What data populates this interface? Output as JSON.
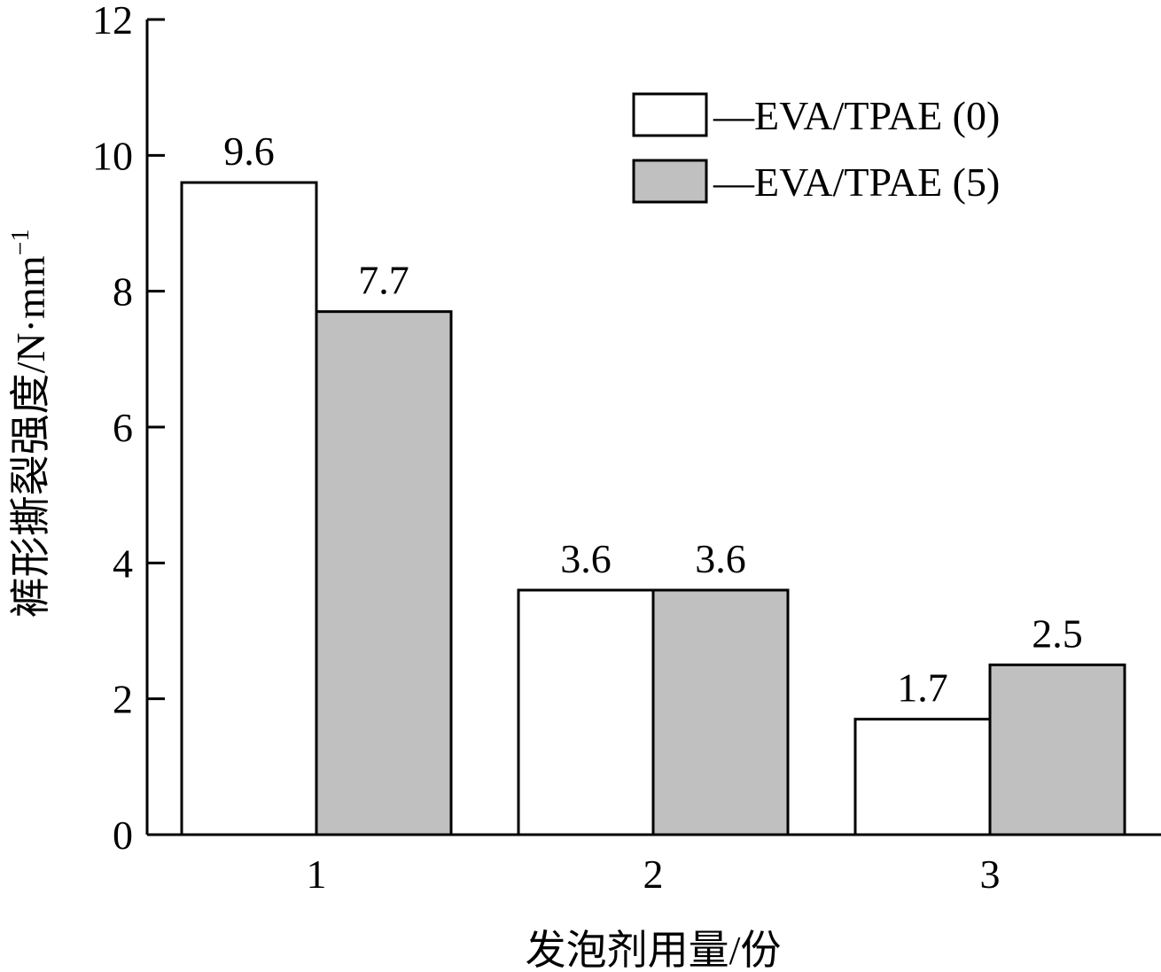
{
  "chart_data": {
    "type": "bar",
    "categories": [
      "1",
      "2",
      "3"
    ],
    "series": [
      {
        "name": "EVA/TPAE (0)",
        "values": [
          9.6,
          3.6,
          1.7
        ],
        "labels": [
          "9.6",
          "3.6",
          "1.7"
        ],
        "color": "#ffffff"
      },
      {
        "name": "EVA/TPAE (5)",
        "values": [
          7.7,
          3.6,
          2.5
        ],
        "labels": [
          "7.7",
          "3.6",
          "2.5"
        ],
        "color": "#c0c0c0"
      }
    ],
    "legend_prefix": "—",
    "title": "",
    "xlabel": "发泡剂用量/份",
    "ylabel": "裤形撕裂强度/N·mm",
    "ylabel_superscript": "−1",
    "ylim": [
      0,
      12
    ],
    "yticks": [
      "0",
      "2",
      "4",
      "6",
      "8",
      "10",
      "12"
    ],
    "grid": false,
    "legend_position": "top-right"
  }
}
